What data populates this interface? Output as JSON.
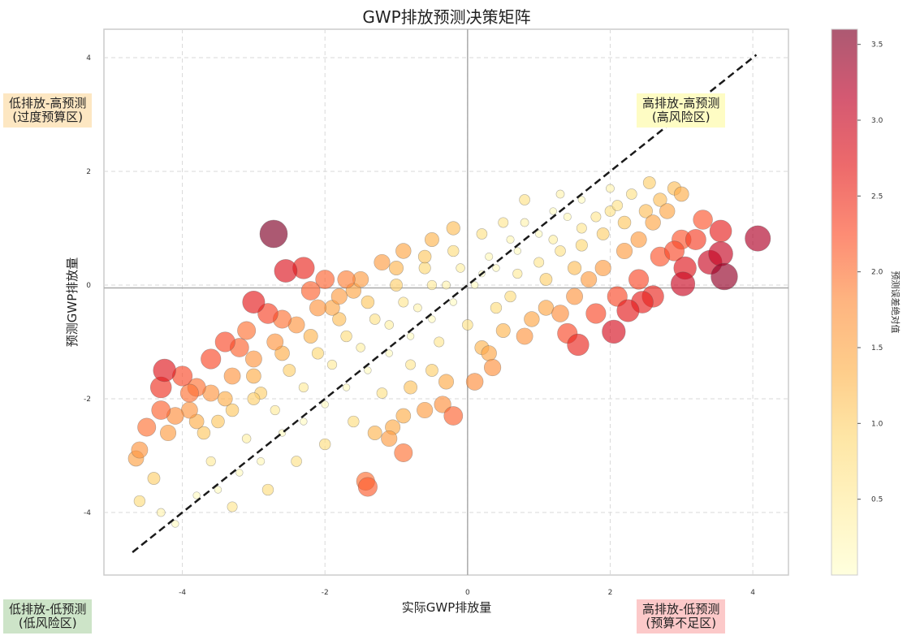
{
  "chart_data": {
    "type": "scatter",
    "title": "GWP排放预测决策矩阵",
    "xlabel": "实际GWP排放量",
    "ylabel": "预测GWP排放量",
    "xlim": [
      -5.1,
      4.5
    ],
    "ylim": [
      -5.1,
      4.5
    ],
    "x_ticks": [
      -4,
      -2,
      0,
      2,
      4
    ],
    "y_ticks": [
      -4,
      -2,
      0,
      2,
      4
    ],
    "grid": true,
    "reference_line": {
      "style": "dashed",
      "from": [
        -4.7,
        -4.7
      ],
      "to": [
        4.05,
        4.05
      ]
    },
    "center_lines": {
      "x": 0.0,
      "y": -0.05
    },
    "colorbar": {
      "label": "预测误差绝对值",
      "colormap": "YlOrRd",
      "range": [
        0,
        3.6
      ],
      "ticks": [
        0.5,
        1.0,
        1.5,
        2.0,
        2.5,
        3.0,
        3.5
      ],
      "colors": [
        "#ffffcc",
        "#ffeda0",
        "#fed976",
        "#feb24c",
        "#fd8d3c",
        "#fc4e2a",
        "#e31a1c",
        "#bd0026",
        "#800026"
      ]
    },
    "points": [
      {
        "x": -2.72,
        "y": 0.9,
        "err": 3.62
      },
      {
        "x": 4.07,
        "y": 0.82,
        "err": 3.25
      },
      {
        "x": 3.6,
        "y": 0.15,
        "err": 3.45
      },
      {
        "x": 3.02,
        "y": 0.02,
        "err": 3.0
      },
      {
        "x": 2.05,
        "y": -0.82,
        "err": 2.87
      },
      {
        "x": -1.4,
        "y": -3.55,
        "err": 2.15
      },
      {
        "x": -1.43,
        "y": -3.45,
        "err": 2.02
      },
      {
        "x": -2.55,
        "y": 0.25,
        "err": 2.8
      },
      {
        "x": -2.3,
        "y": 0.3,
        "err": 2.6
      },
      {
        "x": -4.25,
        "y": -1.5,
        "err": 2.75
      },
      {
        "x": -4.3,
        "y": -1.8,
        "err": 2.5
      },
      {
        "x": 1.55,
        "y": -1.05,
        "err": 2.6
      },
      {
        "x": 3.55,
        "y": 0.95,
        "err": 2.65
      },
      {
        "x": 3.55,
        "y": 0.55,
        "err": 3.05
      },
      {
        "x": 3.05,
        "y": 0.3,
        "err": 2.75
      },
      {
        "x": 2.25,
        "y": -0.45,
        "err": 2.7
      },
      {
        "x": 2.45,
        "y": -0.3,
        "err": 2.65
      },
      {
        "x": 2.6,
        "y": -0.2,
        "err": 2.6
      },
      {
        "x": 1.4,
        "y": -0.85,
        "err": 2.3
      },
      {
        "x": 3.3,
        "y": 1.15,
        "err": 2.2
      },
      {
        "x": 3.0,
        "y": 0.8,
        "err": 2.2
      },
      {
        "x": -3.0,
        "y": -0.3,
        "err": 2.7
      },
      {
        "x": -2.8,
        "y": -0.5,
        "err": 2.35
      },
      {
        "x": -3.4,
        "y": -1.0,
        "err": 2.3
      },
      {
        "x": -3.1,
        "y": -0.8,
        "err": 2.0
      },
      {
        "x": -4.0,
        "y": -1.6,
        "err": 2.3
      },
      {
        "x": -4.3,
        "y": -2.2,
        "err": 2.1
      },
      {
        "x": -1.7,
        "y": 0.1,
        "err": 1.9
      },
      {
        "x": -2.0,
        "y": 0.1,
        "err": 2.1
      },
      {
        "x": -4.6,
        "y": -2.9,
        "err": 1.7
      },
      {
        "x": -0.9,
        "y": -2.95,
        "err": 2.0
      },
      {
        "x": -1.1,
        "y": -2.7,
        "err": 1.6
      },
      {
        "x": 0.35,
        "y": -1.45,
        "err": 1.75
      },
      {
        "x": -0.35,
        "y": -2.1,
        "err": 1.75
      },
      {
        "x": 2.9,
        "y": 1.7,
        "err": 1.2
      },
      {
        "x": 2.55,
        "y": 1.8,
        "err": 1.0
      },
      {
        "x": -4.65,
        "y": -3.05,
        "err": 1.55
      },
      {
        "x": -1.05,
        "y": -2.5,
        "err": 1.45
      },
      {
        "x": -0.3,
        "y": -1.7,
        "err": 1.45
      },
      {
        "x": -0.8,
        "y": -1.8,
        "err": 1.15
      },
      {
        "x": -0.6,
        "y": -2.2,
        "err": 1.6
      },
      {
        "x": 0.2,
        "y": -1.1,
        "err": 1.3
      },
      {
        "x": 0.5,
        "y": -0.8,
        "err": 1.3
      },
      {
        "x": 0.9,
        "y": -0.6,
        "err": 1.5
      },
      {
        "x": 1.1,
        "y": -0.4,
        "err": 1.5
      },
      {
        "x": 1.5,
        "y": -0.2,
        "err": 1.7
      },
      {
        "x": 1.7,
        "y": 0.1,
        "err": 1.6
      },
      {
        "x": 1.9,
        "y": 0.3,
        "err": 1.6
      },
      {
        "x": 2.2,
        "y": 0.6,
        "err": 1.6
      },
      {
        "x": 2.4,
        "y": 0.8,
        "err": 1.6
      },
      {
        "x": 2.6,
        "y": 1.1,
        "err": 1.5
      },
      {
        "x": 2.8,
        "y": 1.3,
        "err": 1.5
      },
      {
        "x": 2.0,
        "y": 1.3,
        "err": 0.7
      },
      {
        "x": 1.6,
        "y": 1.0,
        "err": 0.6
      },
      {
        "x": 1.2,
        "y": 0.8,
        "err": 0.4
      },
      {
        "x": 1.3,
        "y": 1.6,
        "err": 0.3
      },
      {
        "x": 0.8,
        "y": 1.5,
        "err": 0.7
      },
      {
        "x": 0.5,
        "y": 1.1,
        "err": 0.6
      },
      {
        "x": 0.2,
        "y": 0.9,
        "err": 0.7
      },
      {
        "x": -0.2,
        "y": 1.0,
        "err": 1.2
      },
      {
        "x": -0.5,
        "y": 0.8,
        "err": 1.3
      },
      {
        "x": -0.9,
        "y": 0.6,
        "err": 1.5
      },
      {
        "x": -1.2,
        "y": 0.4,
        "err": 1.6
      },
      {
        "x": -1.5,
        "y": 0.1,
        "err": 1.6
      },
      {
        "x": -1.8,
        "y": -0.2,
        "err": 1.6
      },
      {
        "x": -2.1,
        "y": -0.4,
        "err": 1.7
      },
      {
        "x": -2.4,
        "y": -0.7,
        "err": 1.7
      },
      {
        "x": -2.7,
        "y": -1.0,
        "err": 1.7
      },
      {
        "x": -3.0,
        "y": -1.3,
        "err": 1.7
      },
      {
        "x": -3.3,
        "y": -1.6,
        "err": 1.7
      },
      {
        "x": -3.6,
        "y": -1.9,
        "err": 1.7
      },
      {
        "x": -3.9,
        "y": -2.2,
        "err": 1.7
      },
      {
        "x": -4.2,
        "y": -2.6,
        "err": 1.6
      },
      {
        "x": -3.7,
        "y": -2.6,
        "err": 1.1
      },
      {
        "x": -3.3,
        "y": -2.2,
        "err": 1.1
      },
      {
        "x": -2.9,
        "y": -1.9,
        "err": 1.0
      },
      {
        "x": -2.5,
        "y": -1.5,
        "err": 1.0
      },
      {
        "x": -2.1,
        "y": -1.2,
        "err": 0.9
      },
      {
        "x": -1.7,
        "y": -0.9,
        "err": 0.8
      },
      {
        "x": -1.3,
        "y": -0.6,
        "err": 0.7
      },
      {
        "x": -0.9,
        "y": -0.3,
        "err": 0.6
      },
      {
        "x": -0.5,
        "y": 0.0,
        "err": 0.5
      },
      {
        "x": -0.1,
        "y": 0.3,
        "err": 0.4
      },
      {
        "x": 0.3,
        "y": 0.5,
        "err": 0.2
      },
      {
        "x": 0.7,
        "y": 0.6,
        "err": 0.1
      },
      {
        "x": 1.0,
        "y": 0.9,
        "err": 0.1
      },
      {
        "x": -4.3,
        "y": -4.0,
        "err": 0.3
      },
      {
        "x": -4.1,
        "y": -4.2,
        "err": 0.1
      },
      {
        "x": -3.8,
        "y": -3.7,
        "err": 0.1
      },
      {
        "x": -3.5,
        "y": -3.6,
        "err": 0.1
      },
      {
        "x": -3.2,
        "y": -3.3,
        "err": 0.1
      },
      {
        "x": -2.9,
        "y": -3.1,
        "err": 0.2
      },
      {
        "x": -2.6,
        "y": -2.6,
        "err": 0.1
      },
      {
        "x": -2.3,
        "y": -2.4,
        "err": 0.1
      },
      {
        "x": -2.0,
        "y": -2.1,
        "err": 0.1
      },
      {
        "x": -1.7,
        "y": -1.8,
        "err": 0.1
      },
      {
        "x": -1.4,
        "y": -1.5,
        "err": 0.1
      },
      {
        "x": -1.1,
        "y": -1.2,
        "err": 0.1
      },
      {
        "x": -0.8,
        "y": -0.9,
        "err": 0.1
      },
      {
        "x": -0.5,
        "y": -0.6,
        "err": 0.1
      },
      {
        "x": -0.2,
        "y": -0.3,
        "err": 0.1
      },
      {
        "x": 0.1,
        "y": 0.0,
        "err": 0.1
      },
      {
        "x": 0.4,
        "y": 0.3,
        "err": 0.1
      },
      {
        "x": 0.7,
        "y": 0.2,
        "err": 0.5
      },
      {
        "x": 1.0,
        "y": 0.4,
        "err": 0.6
      },
      {
        "x": 1.3,
        "y": 0.6,
        "err": 0.7
      },
      {
        "x": 1.6,
        "y": 0.7,
        "err": 0.9
      },
      {
        "x": 1.9,
        "y": 0.9,
        "err": 1.0
      },
      {
        "x": 2.2,
        "y": 1.1,
        "err": 1.1
      },
      {
        "x": 2.5,
        "y": 1.3,
        "err": 1.2
      },
      {
        "x": 0.4,
        "y": -0.4,
        "err": 0.8
      },
      {
        "x": 0.0,
        "y": -0.7,
        "err": 0.7
      },
      {
        "x": -0.4,
        "y": -1.0,
        "err": 0.6
      },
      {
        "x": -0.8,
        "y": -1.4,
        "err": 0.6
      },
      {
        "x": -1.2,
        "y": -1.9,
        "err": 0.7
      },
      {
        "x": -1.6,
        "y": -2.4,
        "err": 0.8
      },
      {
        "x": -2.0,
        "y": -2.8,
        "err": 0.8
      },
      {
        "x": -2.4,
        "y": -3.1,
        "err": 0.7
      },
      {
        "x": -2.8,
        "y": -3.6,
        "err": 0.8
      },
      {
        "x": -3.3,
        "y": -3.9,
        "err": 0.6
      },
      {
        "x": -0.2,
        "y": 0.6,
        "err": 0.8
      },
      {
        "x": -0.6,
        "y": 0.3,
        "err": 0.9
      },
      {
        "x": -1.0,
        "y": 0.0,
        "err": 1.0
      },
      {
        "x": -1.4,
        "y": -0.3,
        "err": 1.1
      },
      {
        "x": -1.8,
        "y": -0.6,
        "err": 1.2
      },
      {
        "x": -2.2,
        "y": -0.9,
        "err": 1.3
      },
      {
        "x": -2.6,
        "y": -1.2,
        "err": 1.4
      },
      {
        "x": -3.0,
        "y": -1.6,
        "err": 1.4
      },
      {
        "x": -3.4,
        "y": -2.0,
        "err": 1.4
      },
      {
        "x": -3.8,
        "y": -2.4,
        "err": 1.4
      },
      {
        "x": 0.8,
        "y": 1.1,
        "err": 0.3
      },
      {
        "x": 1.2,
        "y": 1.3,
        "err": 0.1
      },
      {
        "x": 1.6,
        "y": 1.5,
        "err": 0.1
      },
      {
        "x": 2.0,
        "y": 1.7,
        "err": 0.3
      },
      {
        "x": 2.3,
        "y": 1.6,
        "err": 0.7
      },
      {
        "x": 0.1,
        "y": -1.7,
        "err": 1.8
      },
      {
        "x": -0.2,
        "y": -2.3,
        "err": 2.1
      },
      {
        "x": 1.8,
        "y": -0.5,
        "err": 2.3
      },
      {
        "x": 2.7,
        "y": 0.5,
        "err": 2.2
      },
      {
        "x": 3.2,
        "y": 0.8,
        "err": 2.4
      },
      {
        "x": 3.4,
        "y": 0.4,
        "err": 3.0
      },
      {
        "x": -3.6,
        "y": -1.3,
        "err": 2.3
      },
      {
        "x": -3.8,
        "y": -1.8,
        "err": 2.0
      },
      {
        "x": -2.6,
        "y": -0.6,
        "err": 2.0
      },
      {
        "x": -2.2,
        "y": -0.1,
        "err": 2.1
      },
      {
        "x": -1.9,
        "y": -0.4,
        "err": 1.5
      },
      {
        "x": -4.5,
        "y": -2.5,
        "err": 2.0
      },
      {
        "x": -4.4,
        "y": -3.4,
        "err": 1.0
      },
      {
        "x": -4.6,
        "y": -3.8,
        "err": 0.8
      },
      {
        "x": -3.6,
        "y": -3.1,
        "err": 0.5
      },
      {
        "x": -3.1,
        "y": -2.7,
        "err": 0.4
      },
      {
        "x": -2.7,
        "y": -2.2,
        "err": 0.5
      },
      {
        "x": -2.3,
        "y": -1.8,
        "err": 0.5
      },
      {
        "x": -1.9,
        "y": -1.4,
        "err": 0.5
      },
      {
        "x": -1.5,
        "y": -1.1,
        "err": 0.4
      },
      {
        "x": -1.1,
        "y": -0.7,
        "err": 0.4
      },
      {
        "x": -0.7,
        "y": -0.4,
        "err": 0.3
      },
      {
        "x": -0.3,
        "y": 0.0,
        "err": 0.3
      },
      {
        "x": 0.2,
        "y": 0.2,
        "err": 0.0
      },
      {
        "x": 0.6,
        "y": 0.8,
        "err": 0.2
      },
      {
        "x": 1.4,
        "y": 1.2,
        "err": 0.2
      },
      {
        "x": 1.8,
        "y": 1.2,
        "err": 0.6
      },
      {
        "x": 2.1,
        "y": 1.4,
        "err": 0.7
      },
      {
        "x": 2.7,
        "y": 1.5,
        "err": 1.2
      },
      {
        "x": 3.0,
        "y": 1.6,
        "err": 1.4
      },
      {
        "x": -0.9,
        "y": -2.3,
        "err": 1.4
      },
      {
        "x": -1.3,
        "y": -2.6,
        "err": 1.3
      },
      {
        "x": -0.5,
        "y": -1.5,
        "err": 1.0
      },
      {
        "x": 0.6,
        "y": -0.2,
        "err": 0.8
      },
      {
        "x": 1.1,
        "y": 0.1,
        "err": 1.0
      },
      {
        "x": 1.5,
        "y": 0.3,
        "err": 1.2
      },
      {
        "x": -1.0,
        "y": 0.3,
        "err": 1.3
      },
      {
        "x": -1.6,
        "y": -0.1,
        "err": 1.5
      },
      {
        "x": -0.6,
        "y": 0.5,
        "err": 1.1
      },
      {
        "x": -3.2,
        "y": -1.1,
        "err": 2.1
      },
      {
        "x": -3.9,
        "y": -1.9,
        "err": 2.0
      },
      {
        "x": -4.1,
        "y": -2.3,
        "err": 1.8
      },
      {
        "x": -3.5,
        "y": -2.4,
        "err": 1.1
      },
      {
        "x": -3.0,
        "y": -2.0,
        "err": 1.0
      },
      {
        "x": 2.9,
        "y": 0.6,
        "err": 2.3
      },
      {
        "x": 2.4,
        "y": 0.1,
        "err": 2.3
      },
      {
        "x": 2.1,
        "y": -0.2,
        "err": 2.3
      },
      {
        "x": 1.3,
        "y": -0.5,
        "err": 1.8
      },
      {
        "x": 0.8,
        "y": -0.9,
        "err": 1.7
      },
      {
        "x": 0.3,
        "y": -1.2,
        "err": 1.5
      }
    ]
  },
  "quadrants": {
    "top_left": {
      "line1": "低排放-高预测",
      "line2": "(过度预算区)",
      "color": "#fde7c2"
    },
    "top_right": {
      "line1": "高排放-高预测",
      "line2": "(高风险区)",
      "color": "#fefcc4"
    },
    "bottom_left": {
      "line1": "低排放-低预测",
      "line2": "(低风险区)",
      "color": "#cde4c8"
    },
    "bottom_right": {
      "line1": "高排放-低预测",
      "line2": "(预算不足区)",
      "color": "#fcc9c9"
    }
  }
}
